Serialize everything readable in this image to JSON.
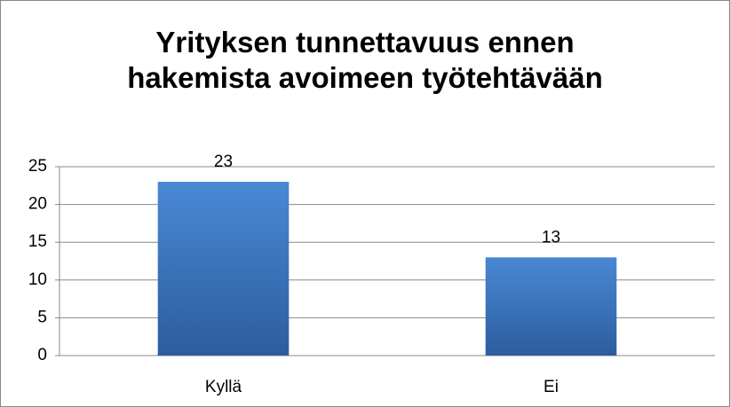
{
  "chart_data": {
    "type": "bar",
    "title": "Yrityksen tunnettavuus ennen hakemista avoimeen työtehtävään",
    "categories": [
      "Kyllä",
      "Ei"
    ],
    "values": [
      23,
      13
    ],
    "color": "#3a73bd",
    "ylim": [
      0,
      25
    ],
    "yticks": [
      0,
      5,
      10,
      15,
      20,
      25
    ],
    "grid": true
  }
}
